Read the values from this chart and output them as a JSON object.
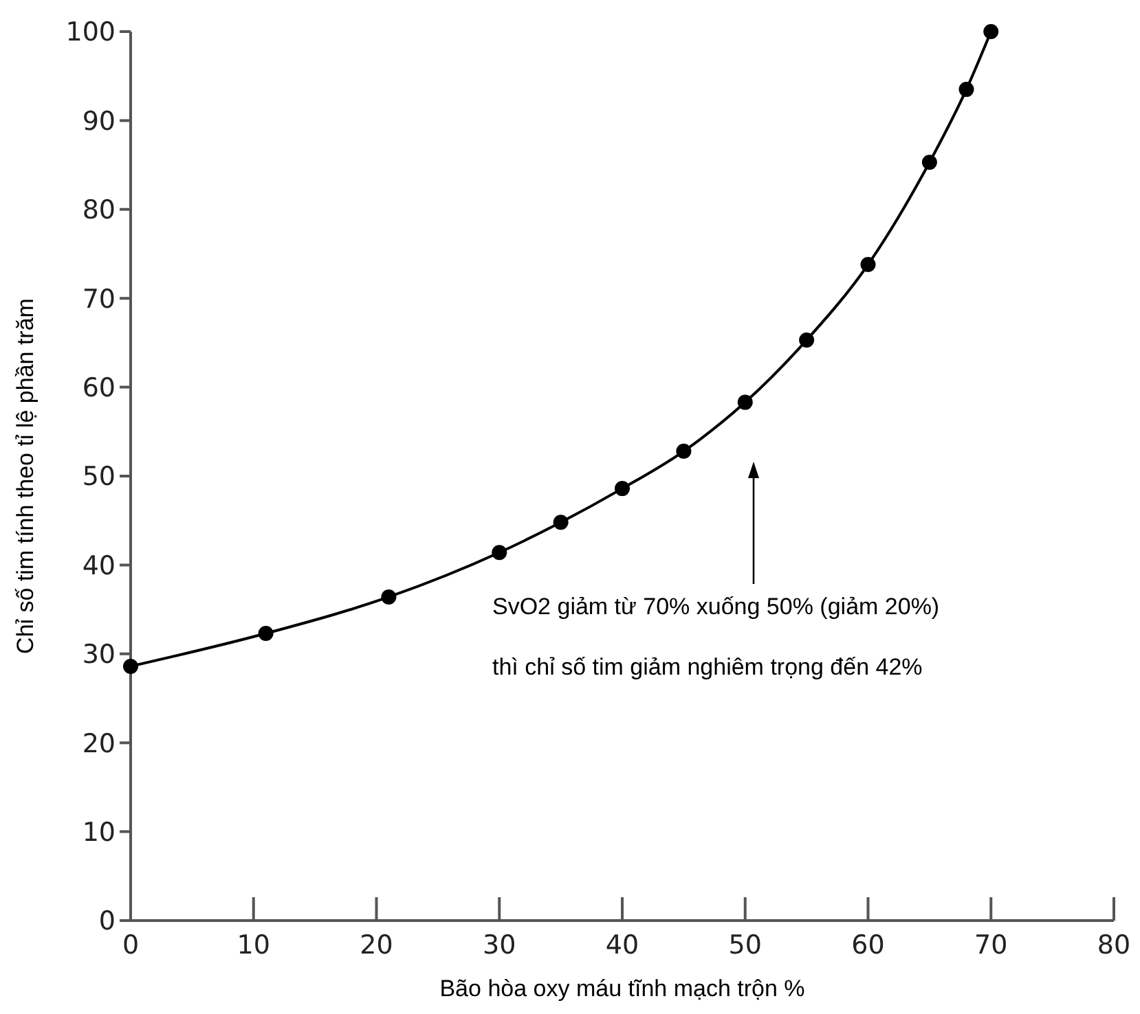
{
  "chart_data": {
    "type": "line",
    "xlabel": "Bão hòa oxy máu tĩnh mạch trộn %",
    "ylabel": "Chỉ số tim tính theo tỉ lệ phần trăm",
    "x": [
      0,
      11,
      21,
      30,
      35,
      40,
      45,
      50,
      55,
      60,
      65,
      68,
      70
    ],
    "series": [
      {
        "color": "#000000",
        "values": [
          28.6,
          32.3,
          36.4,
          41.4,
          44.8,
          48.6,
          52.8,
          58.3,
          65.3,
          73.8,
          85.3,
          93.5,
          100
        ]
      }
    ],
    "xlim": [
      0,
      80
    ],
    "xticks": [
      0,
      10,
      20,
      30,
      40,
      50,
      60,
      70,
      80
    ],
    "ylim": [
      0,
      100
    ],
    "yticks": [
      0,
      10,
      20,
      30,
      40,
      50,
      60,
      70,
      80,
      90,
      100
    ],
    "grid": false,
    "marker": "circle",
    "line_style": "solid",
    "annotations": [
      "SvO2 giảm từ 70% xuống 50% (giảm 20%)",
      "thì chỉ số tim giảm nghiêm trọng đến 42%"
    ]
  }
}
